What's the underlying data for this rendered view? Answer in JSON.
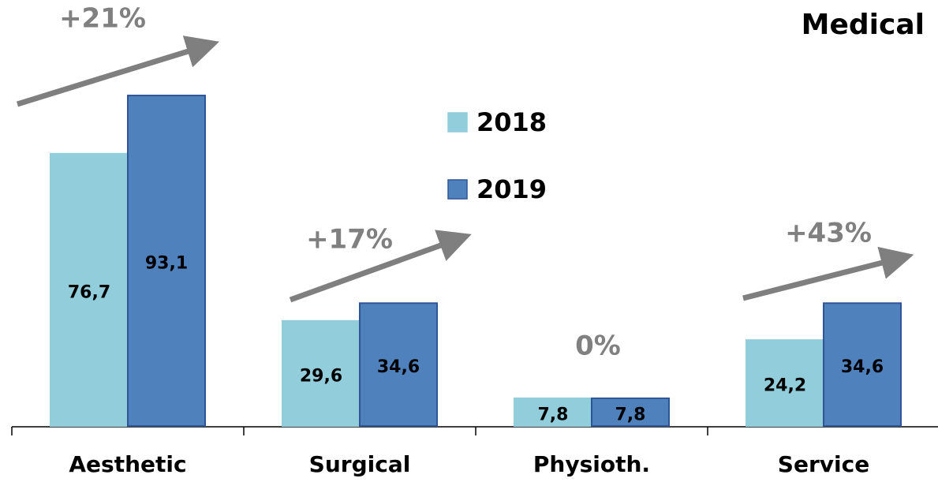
{
  "chart_data": {
    "type": "bar",
    "title": "Medical",
    "categories": [
      "Aesthetic",
      "Surgical",
      "Physioth.",
      "Service"
    ],
    "series": [
      {
        "name": "2018",
        "color": "#92cddc",
        "values": [
          76.7,
          29.6,
          7.8,
          24.2
        ],
        "value_labels": [
          "76,7",
          "29,6",
          "7,8",
          "24,2"
        ]
      },
      {
        "name": "2019",
        "color": "#4f81bd",
        "values": [
          93.1,
          34.6,
          7.8,
          34.6
        ],
        "value_labels": [
          "93,1",
          "34,6",
          "7,8",
          "34,6"
        ]
      }
    ],
    "annotations": [
      "+21%",
      "+17%",
      "0%",
      "+43%"
    ]
  }
}
